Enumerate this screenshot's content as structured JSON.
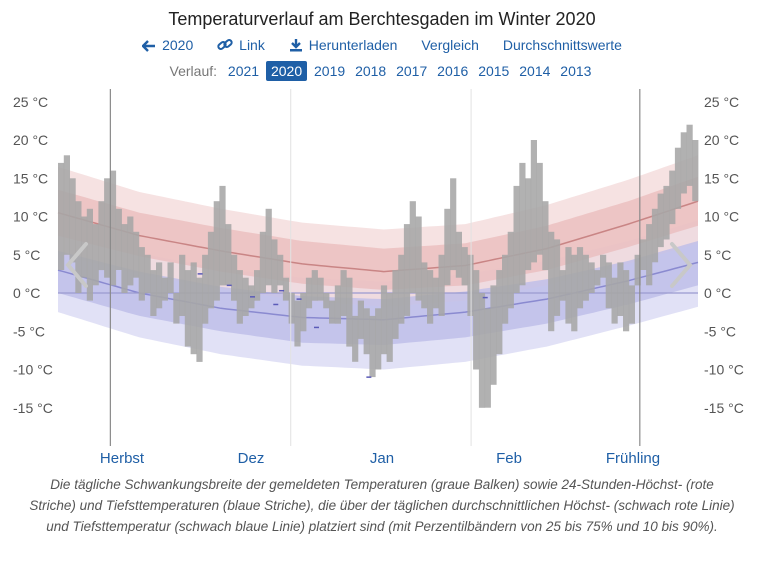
{
  "title": "Temperaturverlauf am Berchtesgaden im Winter 2020",
  "nav": {
    "back": "2020",
    "link": "Link",
    "download": "Herunterladen",
    "compare": "Vergleich",
    "averages": "Durchschnittswerte"
  },
  "years": {
    "label": "Verlauf:",
    "items": [
      "2021",
      "2020",
      "2019",
      "2018",
      "2017",
      "2016",
      "2015",
      "2014",
      "2013"
    ],
    "active": "2020"
  },
  "caption": "Die tägliche Schwankungsbreite der gemeldeten Temperaturen (graue Balken) sowie 24-Stunden-Höchst- (rote Striche) und Tiefsttemperaturen (blaue Striche), die über der täglichen durchschnittlichen Höchst- (schwach rote Linie) und Tiefsttemperatur (schwach blaue Linie) platziert sind (mit Perzentilbändern von 25 bis 75% und 10 bis 90%).",
  "colors": {
    "bar": "#a6a6a6",
    "high_band_outer": "#f3d8d8",
    "high_band_inner": "#e9b9b9",
    "high_line": "#c98585",
    "low_band_outer": "#dcdcf4",
    "low_band_inner": "#bdbde8",
    "low_line": "#8a8ad0",
    "link": "#1f5fa6"
  },
  "chart_data": {
    "type": "bar",
    "unit": "°C",
    "y_ticks": [
      25,
      20,
      15,
      10,
      5,
      0,
      -5,
      -10,
      -15
    ],
    "y_tick_labels": [
      "25 °C",
      "20 °C",
      "15 °C",
      "10 °C",
      "5 °C",
      "0 °C",
      "-5 °C",
      "-10 °C",
      "-15 °C"
    ],
    "ylim": [
      -20,
      27
    ],
    "x_month_labels": [
      "Herbst",
      "Dez",
      "Jan",
      "Feb",
      "Frühling"
    ],
    "season_boundaries_day": [
      9,
      100
    ],
    "month_boundaries_day": [
      40,
      71
    ],
    "day_range": [
      0,
      110
    ],
    "daily_range": [
      [
        3,
        17
      ],
      [
        5,
        18
      ],
      [
        4,
        15
      ],
      [
        0,
        12
      ],
      [
        2,
        10
      ],
      [
        -1,
        11
      ],
      [
        1,
        9
      ],
      [
        3,
        12
      ],
      [
        2,
        15
      ],
      [
        1,
        16
      ],
      [
        3,
        11
      ],
      [
        0,
        9
      ],
      [
        1,
        10
      ],
      [
        2,
        8
      ],
      [
        -1,
        6
      ],
      [
        0,
        5
      ],
      [
        -3,
        3
      ],
      [
        -2,
        4
      ],
      [
        -1,
        2
      ],
      [
        0,
        4
      ],
      [
        -4,
        0
      ],
      [
        -3,
        5
      ],
      [
        -7,
        3
      ],
      [
        -8,
        4
      ],
      [
        -9,
        2
      ],
      [
        -4,
        5
      ],
      [
        -2,
        8
      ],
      [
        -1,
        12
      ],
      [
        1,
        14
      ],
      [
        1,
        9
      ],
      [
        -1,
        5
      ],
      [
        -4,
        3
      ],
      [
        -3,
        2
      ],
      [
        -2,
        1
      ],
      [
        -1,
        3
      ],
      [
        0,
        8
      ],
      [
        1,
        11
      ],
      [
        0,
        7
      ],
      [
        1,
        5
      ],
      [
        -1,
        2
      ],
      [
        -4,
        0
      ],
      [
        -7,
        -1
      ],
      [
        -5,
        0
      ],
      [
        -2,
        2
      ],
      [
        -1,
        3
      ],
      [
        -1,
        2
      ],
      [
        -2,
        0
      ],
      [
        -4,
        -1
      ],
      [
        -4,
        1
      ],
      [
        -3,
        3
      ],
      [
        -7,
        2
      ],
      [
        -9,
        -3
      ],
      [
        -6,
        -1
      ],
      [
        -8,
        -2
      ],
      [
        -11,
        -3
      ],
      [
        -10,
        -2
      ],
      [
        -8,
        1
      ],
      [
        -9,
        0
      ],
      [
        -6,
        3
      ],
      [
        -4,
        5
      ],
      [
        -3,
        9
      ],
      [
        0,
        12
      ],
      [
        -1,
        10
      ],
      [
        -2,
        4
      ],
      [
        -4,
        3
      ],
      [
        -2,
        2
      ],
      [
        -3,
        5
      ],
      [
        1,
        11
      ],
      [
        3,
        15
      ],
      [
        2,
        8
      ],
      [
        1,
        6
      ],
      [
        -3,
        5
      ],
      [
        -10,
        3
      ],
      [
        -15,
        0
      ],
      [
        -15,
        -2
      ],
      [
        -12,
        1
      ],
      [
        -8,
        3
      ],
      [
        -4,
        5
      ],
      [
        -2,
        8
      ],
      [
        0,
        14
      ],
      [
        1,
        17
      ],
      [
        3,
        15
      ],
      [
        4,
        20
      ],
      [
        5,
        17
      ],
      [
        3,
        12
      ],
      [
        -5,
        8
      ],
      [
        -3,
        7
      ],
      [
        -1,
        3
      ],
      [
        -4,
        6
      ],
      [
        -5,
        5
      ],
      [
        -2,
        6
      ],
      [
        -1,
        5
      ],
      [
        0,
        4
      ],
      [
        1,
        3
      ],
      [
        2,
        5
      ],
      [
        -2,
        4
      ],
      [
        -4,
        2
      ],
      [
        -3,
        4
      ],
      [
        -5,
        3
      ],
      [
        -4,
        1
      ],
      [
        1,
        5
      ],
      [
        3,
        7
      ],
      [
        1,
        9
      ],
      [
        4,
        11
      ],
      [
        6,
        13
      ],
      [
        7,
        14
      ],
      [
        9,
        16
      ],
      [
        11,
        19
      ],
      [
        13,
        21
      ],
      [
        14,
        22
      ],
      [
        12,
        20
      ]
    ],
    "avg_high": {
      "days": [
        0,
        14,
        28,
        42,
        56,
        70,
        84,
        98,
        110
      ],
      "values": [
        10.5,
        7.5,
        5.5,
        3.8,
        2.8,
        3.6,
        5.8,
        9.0,
        12.0
      ]
    },
    "avg_low": {
      "days": [
        0,
        14,
        28,
        42,
        56,
        70,
        84,
        98,
        110
      ],
      "values": [
        3.0,
        0.0,
        -2.0,
        -3.2,
        -3.5,
        -2.5,
        -0.8,
        1.6,
        4.0
      ]
    },
    "high_band_25_75": {
      "days": [
        0,
        14,
        28,
        42,
        56,
        70,
        84,
        98,
        110
      ],
      "low": [
        7.5,
        4.8,
        2.8,
        1.2,
        0.4,
        1.0,
        3.0,
        6.0,
        8.8
      ],
      "high": [
        13.5,
        10.5,
        8.5,
        6.8,
        5.8,
        6.5,
        8.8,
        12.0,
        15.2
      ]
    },
    "high_band_10_90": {
      "days": [
        0,
        14,
        28,
        42,
        56,
        70,
        84,
        98,
        110
      ],
      "low": [
        5.0,
        2.5,
        0.5,
        -1.0,
        -1.8,
        -1.0,
        1.0,
        3.8,
        6.5
      ],
      "high": [
        16.5,
        13.2,
        11.0,
        9.2,
        8.3,
        9.0,
        11.5,
        14.8,
        18.0
      ]
    },
    "low_band_25_75": {
      "days": [
        0,
        14,
        28,
        42,
        56,
        70,
        84,
        98,
        110
      ],
      "low": [
        0.0,
        -3.0,
        -5.0,
        -6.5,
        -6.8,
        -5.8,
        -4.0,
        -1.5,
        1.0
      ],
      "high": [
        5.5,
        2.8,
        0.8,
        -0.4,
        -0.8,
        0.2,
        1.8,
        4.2,
        6.8
      ]
    },
    "low_band_10_90": {
      "days": [
        0,
        14,
        28,
        42,
        56,
        70,
        84,
        98,
        110
      ],
      "low": [
        -2.5,
        -5.8,
        -8.0,
        -9.5,
        -10.0,
        -9.0,
        -7.0,
        -4.3,
        -1.8
      ],
      "high": [
        8.0,
        5.2,
        3.2,
        2.0,
        1.5,
        2.5,
        4.2,
        6.8,
        9.5
      ]
    },
    "daily_high_marks": [
      [
        24,
        2.5
      ],
      [
        29,
        1.0
      ],
      [
        33,
        -0.5
      ],
      [
        38,
        0.3
      ],
      [
        41,
        -0.8
      ],
      [
        53,
        -11.0
      ],
      [
        73,
        -0.6
      ]
    ],
    "daily_low_marks": [
      [
        37,
        -1.5
      ],
      [
        44,
        -4.5
      ]
    ]
  }
}
